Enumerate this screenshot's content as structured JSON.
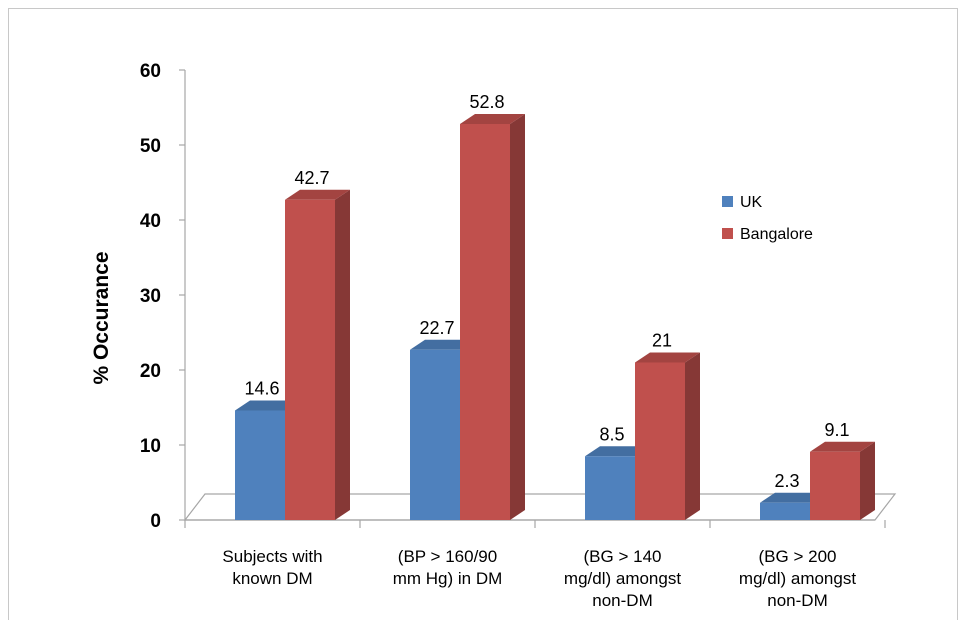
{
  "chart_data": {
    "type": "bar",
    "title": "",
    "xlabel": "",
    "ylabel": "% Occurance",
    "ylim": [
      0,
      60
    ],
    "yticks": [
      0,
      10,
      20,
      30,
      40,
      50,
      60
    ],
    "categories": [
      [
        "Subjects with",
        "known DM"
      ],
      [
        "(BP > 160/90",
        "mm Hg) in DM"
      ],
      [
        "(BG > 140",
        "mg/dl) amongst",
        "non-DM"
      ],
      [
        "(BG > 200",
        "mg/dl) amongst",
        "non-DM"
      ]
    ],
    "series": [
      {
        "name": "UK",
        "values": [
          14.6,
          22.7,
          8.5,
          2.3
        ],
        "value_labels": [
          "14.6",
          "22.7",
          "8.5",
          "2.3"
        ],
        "color": "#4f81bd"
      },
      {
        "name": "Bangalore",
        "values": [
          42.7,
          52.8,
          21,
          9.1
        ],
        "value_labels": [
          "42.7",
          "52.8",
          "21",
          "9.1"
        ],
        "color": "#c0504d"
      }
    ],
    "legend_position": "right",
    "grid": false,
    "style": "3d-column"
  }
}
